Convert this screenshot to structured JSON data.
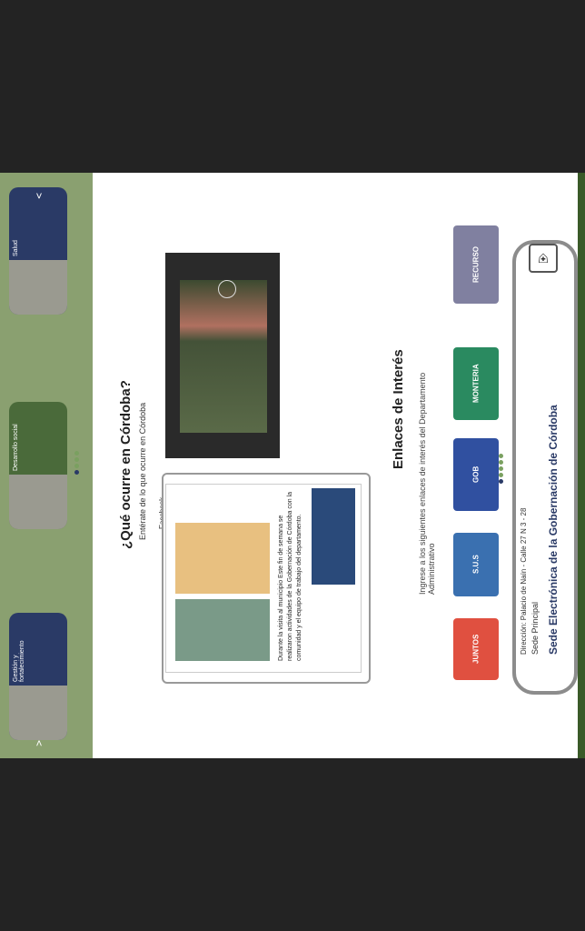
{
  "header": {
    "title": "Sede Electrónica de la Gobernación de Córdoba",
    "subtitle": "Sede Principal",
    "address": "Dirección: Palacio de Naín - Calle 27 N 3 - 28"
  },
  "links_section": {
    "title": "Enlaces de Interés",
    "subtitle": "Ingrese a los siguientes enlaces de interés del Departamento Administrativo",
    "logos": [
      {
        "name": "logo-juntos",
        "color": "#e05040",
        "label": "JUNTOS"
      },
      {
        "name": "logo-sus",
        "color": "#3a70b0",
        "label": "S.U.S"
      },
      {
        "name": "logo-gobernacion",
        "color": "#3050a0",
        "label": "GOB"
      },
      {
        "name": "logo-monteria",
        "color": "#2a8a60",
        "label": "MONTERIA"
      },
      {
        "name": "logo-recurso",
        "color": "#8080a0",
        "label": "RECURSO"
      }
    ]
  },
  "events_section": {
    "title": "¿Qué ocurre en Córdoba?",
    "subtitle": "Entérate de lo que ocurre en Córdoba",
    "facebook_label": "Facebook",
    "facebook_page": "Gobernación de Córdoba",
    "facebook_post": "Durante la visita al municipio Este fin de semana se realizaron actividades de la Gobernación de Córdoba con la comunidad y el equipo de trabajo del departamento."
  },
  "carousel": {
    "slides": [
      {
        "label": "Salud",
        "color": "#2a3a66"
      },
      {
        "label": "Desarrollo social",
        "color": "#4a6a3a"
      },
      {
        "label": "Gestión y fortalecimiento",
        "color": "#2a3a66"
      }
    ]
  }
}
